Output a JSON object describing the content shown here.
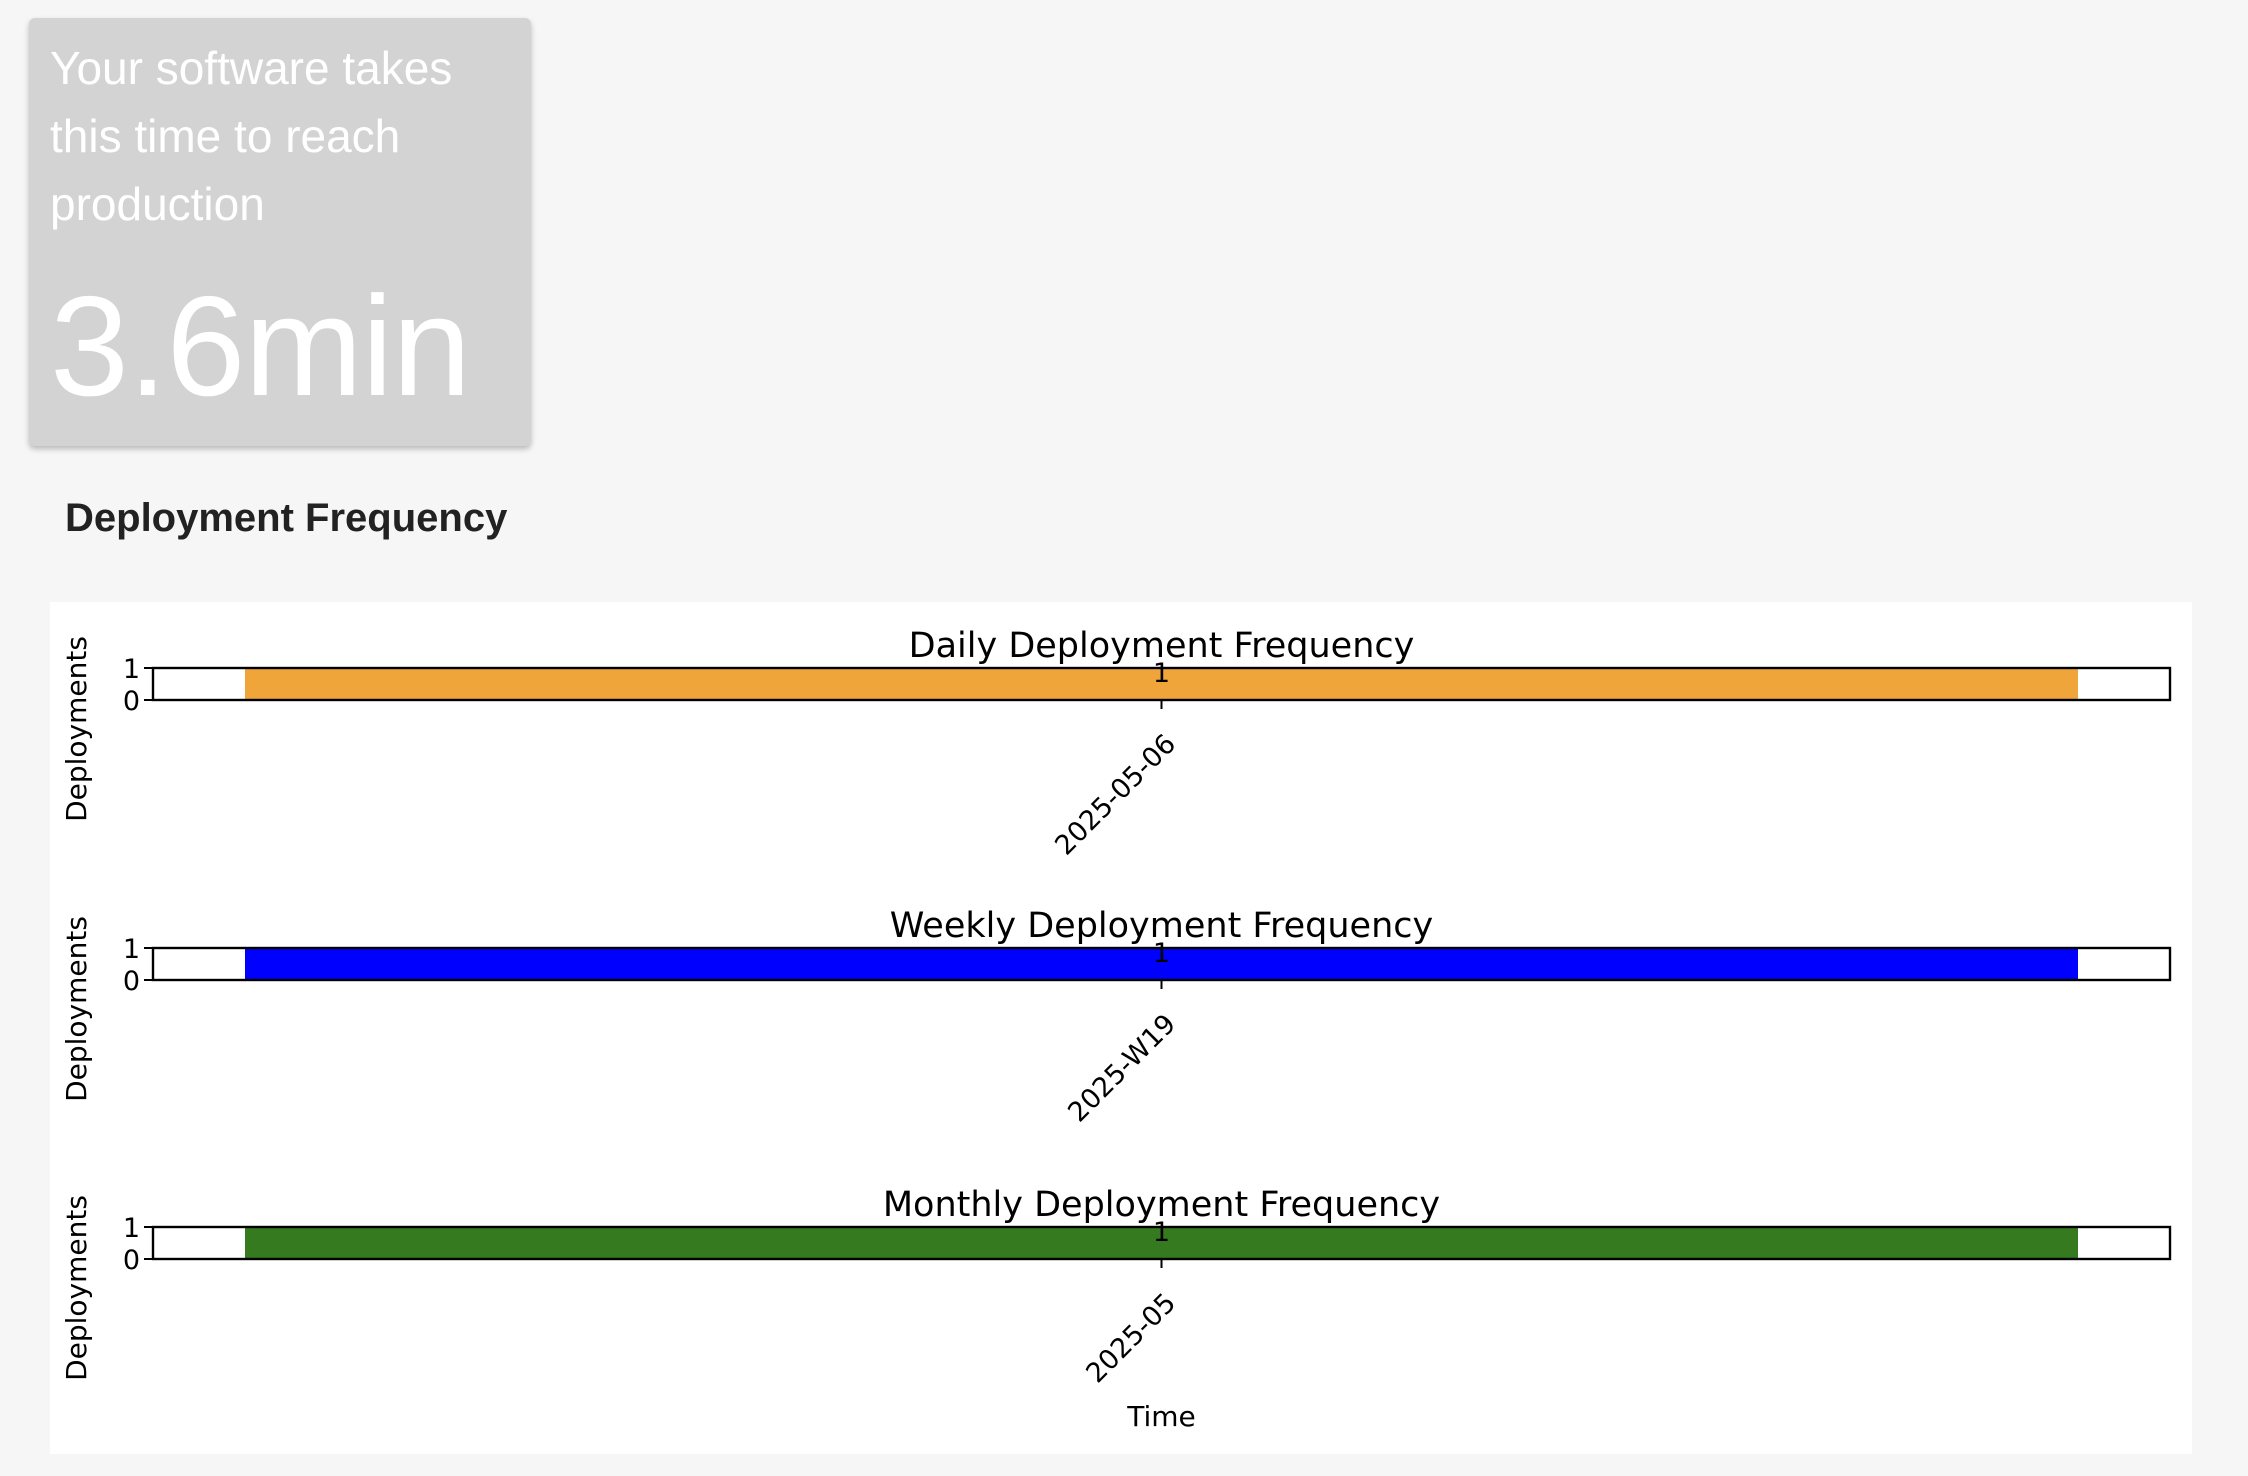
{
  "metric": {
    "caption": "Your software takes this time to reach production",
    "value": "3.6min"
  },
  "section": {
    "title": "Deployment Frequency"
  },
  "chart_data": [
    {
      "type": "bar",
      "title": "Daily Deployment Frequency",
      "ylabel": "Deployments",
      "xlabel": "",
      "categories": [
        "2025-05-06"
      ],
      "values": [
        1
      ],
      "data_labels": [
        "1"
      ],
      "yticks": [
        "0",
        "1"
      ],
      "ylim": [
        0,
        1
      ],
      "color": "#f0a53a",
      "grid": false
    },
    {
      "type": "bar",
      "title": "Weekly Deployment Frequency",
      "ylabel": "Deployments",
      "xlabel": "",
      "categories": [
        "2025-W19"
      ],
      "values": [
        1
      ],
      "data_labels": [
        "1"
      ],
      "yticks": [
        "0",
        "1"
      ],
      "ylim": [
        0,
        1
      ],
      "color": "#0000ff",
      "grid": false
    },
    {
      "type": "bar",
      "title": "Monthly Deployment Frequency",
      "ylabel": "Deployments",
      "xlabel": "Time",
      "categories": [
        "2025-05"
      ],
      "values": [
        1
      ],
      "data_labels": [
        "1"
      ],
      "yticks": [
        "0",
        "1"
      ],
      "ylim": [
        0,
        1
      ],
      "color": "#367a20",
      "grid": false
    }
  ]
}
